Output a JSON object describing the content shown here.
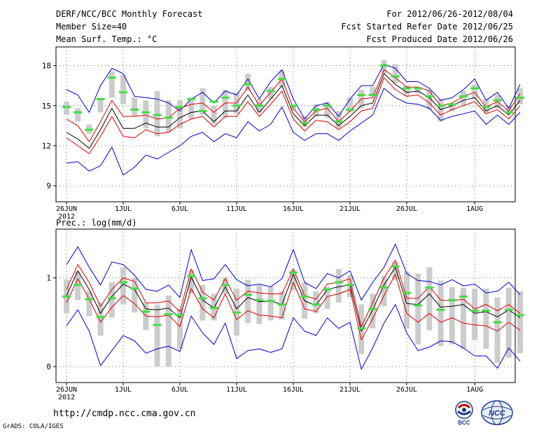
{
  "header": {
    "title": "DERF/NCC/BCC Monthly Forecast",
    "member_size": "Member Size=40",
    "variable": "Mean Surf. Temp.: °C",
    "forecast_period": "For 2012/06/26-2012/08/04",
    "refer_date": "Fcst Started Refer Date 2012/06/25",
    "produced_date": "Fcst Produced Date 2012/06/26"
  },
  "footer": {
    "url": "http://cmdp.ncc.cma.gov.cn",
    "credit": "GrADS: COLA/IGES",
    "logo_bcc": "BCC",
    "logo_ncc": "NCC"
  },
  "colors": {
    "mean": "#000000",
    "spread": "#dd0000",
    "extreme": "#0000cc",
    "marker": "#44dd44",
    "box": "#cccccc"
  },
  "chart_data": [
    {
      "type": "line",
      "title": "Mean Surf. Temp.: °C",
      "x_ticks": [
        "26JUN",
        "1JUL",
        "6JUL",
        "11JUL",
        "16JUL",
        "21JUL",
        "26JUL",
        "1AUG"
      ],
      "x_tick_day_index": [
        0,
        5,
        10,
        15,
        20,
        25,
        30,
        36
      ],
      "x_year_label": "2012",
      "y_ticks": [
        9,
        12,
        15,
        18
      ],
      "ylim": [
        7.8,
        19.4
      ],
      "series": [
        {
          "name": "max",
          "role": "extreme",
          "values": [
            16.2,
            15.8,
            14.5,
            16.5,
            17.8,
            17.4,
            15.7,
            15.6,
            15.5,
            15.2,
            14.6,
            15.5,
            16.0,
            15.2,
            16.1,
            15.8,
            17.0,
            15.5,
            16.8,
            17.7,
            15.5,
            14.0,
            15.0,
            15.2,
            14.2,
            15.5,
            16.5,
            16.5,
            18.1,
            17.8,
            16.8,
            16.8,
            16.3,
            15.4,
            15.6,
            16.2,
            17.0,
            15.4,
            16.0,
            14.8,
            16.6
          ]
        },
        {
          "name": "upper",
          "role": "spread",
          "values": [
            14.0,
            13.5,
            12.3,
            13.8,
            15.4,
            14.2,
            14.2,
            14.3,
            14.0,
            14.1,
            14.8,
            15.1,
            15.2,
            14.5,
            15.2,
            15.2,
            16.4,
            15.0,
            16.0,
            17.0,
            14.8,
            13.8,
            14.6,
            14.8,
            13.8,
            14.6,
            15.5,
            15.6,
            17.7,
            17.1,
            16.4,
            16.4,
            16.1,
            15.0,
            15.2,
            15.7,
            16.0,
            14.9,
            15.3,
            14.6,
            15.9
          ]
        },
        {
          "name": "mean",
          "role": "mean",
          "values": [
            13.0,
            12.5,
            11.8,
            13.2,
            14.8,
            13.3,
            13.3,
            13.7,
            13.4,
            13.4,
            14.1,
            14.5,
            14.6,
            13.8,
            14.6,
            14.6,
            15.8,
            14.5,
            15.5,
            16.5,
            14.4,
            13.5,
            14.3,
            14.3,
            13.5,
            14.2,
            15.0,
            15.2,
            17.4,
            16.6,
            16.0,
            16.1,
            15.6,
            14.7,
            15.0,
            15.4,
            15.6,
            14.6,
            15.0,
            14.3,
            15.4
          ]
        },
        {
          "name": "lower",
          "role": "spread",
          "values": [
            12.6,
            12.0,
            11.4,
            12.7,
            14.2,
            12.7,
            12.6,
            13.2,
            12.9,
            13.0,
            13.6,
            14.0,
            14.2,
            13.4,
            14.2,
            14.2,
            15.3,
            14.2,
            15.1,
            16.1,
            14.0,
            13.1,
            13.9,
            13.8,
            13.2,
            13.8,
            14.6,
            14.8,
            17.1,
            16.2,
            15.7,
            15.8,
            15.2,
            14.3,
            14.7,
            15.0,
            15.3,
            14.4,
            14.7,
            14.0,
            15.0
          ]
        },
        {
          "name": "min",
          "role": "extreme",
          "values": [
            10.7,
            10.8,
            10.1,
            10.5,
            11.9,
            9.8,
            10.4,
            11.3,
            11.0,
            11.5,
            12.0,
            12.7,
            13.0,
            12.3,
            12.9,
            12.6,
            13.8,
            13.1,
            13.6,
            14.9,
            13.0,
            12.4,
            12.9,
            12.9,
            12.4,
            13.1,
            13.7,
            14.3,
            16.3,
            15.6,
            15.2,
            15.1,
            14.8,
            13.9,
            14.2,
            14.4,
            14.6,
            13.6,
            14.3,
            13.6,
            14.5
          ]
        },
        {
          "name": "boxes",
          "role": "box",
          "lows": [
            14.3,
            13.8,
            12.9,
            14.5,
            15.6,
            15.1,
            14.2,
            13.3,
            12.7,
            13.0,
            13.3,
            14.0,
            14.3,
            13.6,
            14.1,
            14.4,
            16.1,
            14.5,
            15.5,
            16.4,
            14.7,
            13.4,
            14.2,
            14.1,
            13.3,
            14.5,
            14.8,
            15.7,
            17.4,
            16.7,
            15.7,
            15.9,
            14.7,
            13.8,
            14.6,
            15.0,
            15.5,
            14.4,
            14.8,
            14.4,
            15.1
          ],
          "highs": [
            15.3,
            14.8,
            13.6,
            15.6,
            17.6,
            17.3,
            15.6,
            15.4,
            16.1,
            15.4,
            15.4,
            15.6,
            16.3,
            15.0,
            16.2,
            16.0,
            17.4,
            15.5,
            16.4,
            17.6,
            15.0,
            14.2,
            15.1,
            15.3,
            14.6,
            15.6,
            16.2,
            16.4,
            18.4,
            18.1,
            16.5,
            16.4,
            16.2,
            15.5,
            15.1,
            16.1,
            16.6,
            15.5,
            15.8,
            15.0,
            16.3
          ]
        },
        {
          "name": "markers",
          "role": "marker",
          "values": [
            14.9,
            14.5,
            13.2,
            15.5,
            17.1,
            16.0,
            14.7,
            14.5,
            14.3,
            14.1,
            14.9,
            15.5,
            14.6,
            15.3,
            15.6,
            15.0,
            16.6,
            15.0,
            16.1,
            17.0,
            15.0,
            13.7,
            14.7,
            15.0,
            13.8,
            14.7,
            15.8,
            15.8,
            18.0,
            17.2,
            16.3,
            16.3,
            15.7,
            15.0,
            15.1,
            15.7,
            16.3,
            14.9,
            15.4,
            14.5,
            15.6
          ]
        }
      ]
    },
    {
      "type": "line",
      "title": "Prec.: log(mm/d)",
      "x_ticks": [
        "26JUN",
        "1JUL",
        "6JUL",
        "11JUL",
        "16JUL",
        "21JUL",
        "26JUL",
        "1AUG"
      ],
      "x_tick_day_index": [
        0,
        5,
        10,
        15,
        20,
        25,
        30,
        36
      ],
      "x_year_label": "2012",
      "y_ticks": [
        0,
        1
      ],
      "ylim": [
        -0.18,
        1.55
      ],
      "series": [
        {
          "name": "max",
          "role": "extreme",
          "values": [
            1.15,
            1.35,
            1.12,
            0.92,
            1.18,
            1.15,
            1.03,
            0.87,
            0.85,
            0.92,
            0.78,
            1.32,
            0.97,
            0.99,
            1.15,
            0.98,
            0.91,
            0.93,
            0.9,
            0.99,
            1.32,
            0.95,
            0.88,
            1.05,
            1.0,
            1.08,
            0.75,
            0.95,
            1.12,
            1.38,
            1.05,
            0.97,
            0.96,
            0.92,
            0.98,
            0.91,
            0.93,
            0.83,
            0.85,
            0.95,
            0.81
          ]
        },
        {
          "name": "upper",
          "role": "spread",
          "values": [
            0.87,
            1.15,
            0.95,
            0.68,
            0.87,
            1.0,
            0.96,
            0.72,
            0.72,
            0.74,
            0.62,
            1.1,
            0.84,
            0.75,
            0.99,
            0.75,
            0.85,
            0.83,
            0.82,
            0.82,
            1.1,
            0.8,
            0.76,
            0.93,
            0.95,
            0.99,
            0.45,
            0.72,
            1.0,
            1.2,
            0.77,
            0.77,
            0.9,
            0.75,
            0.74,
            0.76,
            0.65,
            0.7,
            0.63,
            0.7,
            0.6
          ]
        },
        {
          "name": "mean",
          "role": "mean",
          "values": [
            0.8,
            1.08,
            0.87,
            0.6,
            0.79,
            0.93,
            0.87,
            0.65,
            0.64,
            0.66,
            0.55,
            1.01,
            0.75,
            0.66,
            0.9,
            0.65,
            0.78,
            0.73,
            0.74,
            0.7,
            1.04,
            0.74,
            0.69,
            0.87,
            0.9,
            0.92,
            0.4,
            0.64,
            0.92,
            1.12,
            0.71,
            0.7,
            0.82,
            0.67,
            0.68,
            0.7,
            0.6,
            0.62,
            0.56,
            0.64,
            0.55
          ]
        },
        {
          "name": "lower",
          "role": "spread",
          "values": [
            0.72,
            0.99,
            0.76,
            0.5,
            0.67,
            0.8,
            0.71,
            0.57,
            0.56,
            0.58,
            0.45,
            0.88,
            0.65,
            0.55,
            0.82,
            0.53,
            0.63,
            0.58,
            0.57,
            0.55,
            0.95,
            0.65,
            0.62,
            0.79,
            0.82,
            0.87,
            0.3,
            0.54,
            0.8,
            1.04,
            0.6,
            0.5,
            0.6,
            0.5,
            0.55,
            0.49,
            0.47,
            0.46,
            0.4,
            0.5,
            0.41
          ]
        },
        {
          "name": "min",
          "role": "extreme",
          "values": [
            0.46,
            0.64,
            0.4,
            0.01,
            0.18,
            0.35,
            0.29,
            0.15,
            0.2,
            0.23,
            0.17,
            0.57,
            0.38,
            0.25,
            0.49,
            0.09,
            0.18,
            0.2,
            0.16,
            0.2,
            0.55,
            0.4,
            0.35,
            0.55,
            0.43,
            0.5,
            -0.03,
            0.21,
            0.49,
            0.7,
            0.38,
            0.18,
            0.22,
            0.29,
            0.28,
            0.21,
            0.12,
            0.12,
            -0.02,
            0.21,
            0.06
          ]
        },
        {
          "name": "boxes",
          "role": "box",
          "lows": [
            0.6,
            0.75,
            0.57,
            0.35,
            0.55,
            0.7,
            0.61,
            0.41,
            0.0,
            0.0,
            0.2,
            0.82,
            0.52,
            0.52,
            0.82,
            0.35,
            0.49,
            0.48,
            0.52,
            0.53,
            0.86,
            0.54,
            0.6,
            0.65,
            0.72,
            0.78,
            0.14,
            0.43,
            0.68,
            0.98,
            0.43,
            0.25,
            0.41,
            0.23,
            0.25,
            0.2,
            0.3,
            0.2,
            0.04,
            0.1,
            0.15
          ],
          "highs": [
            0.98,
            1.07,
            0.85,
            0.72,
            0.95,
            1.12,
            1.0,
            0.72,
            0.7,
            0.8,
            0.65,
            1.09,
            0.92,
            0.82,
            1.01,
            0.88,
            0.98,
            0.92,
            0.9,
            0.85,
            1.09,
            0.95,
            0.85,
            0.9,
            1.1,
            1.03,
            0.7,
            0.82,
            1.02,
            1.18,
            1.07,
            1.05,
            1.12,
            0.97,
            0.9,
            0.89,
            0.88,
            0.88,
            0.78,
            0.89,
            0.85
          ]
        },
        {
          "name": "markers",
          "role": "marker",
          "values": [
            0.79,
            0.92,
            0.76,
            0.56,
            0.77,
            0.95,
            0.88,
            0.62,
            0.47,
            0.59,
            0.58,
            1.02,
            0.77,
            0.66,
            0.92,
            0.61,
            0.81,
            0.75,
            0.74,
            0.7,
            1.06,
            0.79,
            0.7,
            0.87,
            0.95,
            0.92,
            0.43,
            0.65,
            0.89,
            1.13,
            0.83,
            0.69,
            0.89,
            0.64,
            0.75,
            0.79,
            0.63,
            0.63,
            0.5,
            0.64,
            0.58
          ]
        }
      ]
    }
  ]
}
